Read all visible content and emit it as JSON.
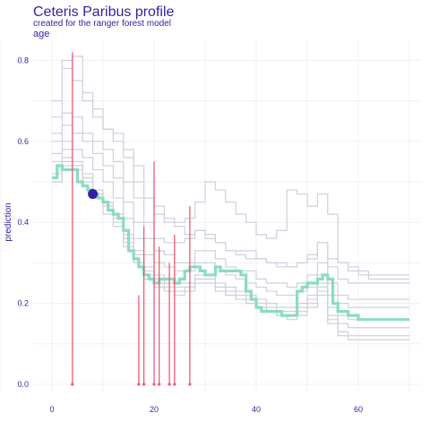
{
  "header": {
    "title": "Ceteris Paribus profile",
    "subtitle": "created for the ranger forest model",
    "facet": "age"
  },
  "colors": {
    "text": "#371ea3",
    "grid": "#f0f0f4",
    "profile": "#cfcfdf",
    "main_profile": "#8bdcbe",
    "rug": "#f05a71",
    "observation": "#371ea3"
  },
  "chart_data": {
    "type": "line",
    "title": "Ceteris Paribus profile",
    "subtitle": "created for the ranger forest model",
    "xlabel": "age",
    "ylabel": "prediction",
    "xlim": [
      -3,
      73
    ],
    "ylim": [
      -0.01,
      0.84
    ],
    "x_ticks": [
      0,
      20,
      40,
      60
    ],
    "y_ticks": [
      0.0,
      0.2,
      0.4,
      0.6,
      0.8
    ],
    "y_tick_labels": [
      "0.0",
      "0.2",
      "0.4",
      "0.6",
      "0.8"
    ],
    "grid": true,
    "legend": "none",
    "series": [
      {
        "x": [
          0,
          2,
          4,
          6,
          8,
          10,
          12,
          14,
          16,
          18,
          20,
          22,
          24,
          26,
          28,
          30,
          32,
          34,
          36,
          38,
          40,
          42,
          44,
          46,
          48,
          50,
          52,
          54,
          56,
          58,
          60,
          62,
          64,
          66,
          68,
          70
        ],
        "values": [
          0.7,
          0.8,
          0.81,
          0.72,
          0.68,
          0.63,
          0.62,
          0.58,
          0.54,
          0.46,
          0.44,
          0.41,
          0.39,
          0.37,
          0.38,
          0.36,
          0.35,
          0.33,
          0.32,
          0.31,
          0.31,
          0.3,
          0.3,
          0.29,
          0.3,
          0.31,
          0.35,
          0.31,
          0.3,
          0.29,
          0.28,
          0.27,
          0.27,
          0.27,
          0.27,
          0.27
        ]
      },
      {
        "x": [
          0,
          2,
          4,
          6,
          8,
          10,
          12,
          14,
          16,
          18,
          20,
          22,
          24,
          26,
          28,
          30,
          32,
          34,
          36,
          38,
          40,
          42,
          44,
          46,
          48,
          50,
          52,
          54,
          56,
          58,
          60,
          62,
          64,
          66,
          68,
          70
        ],
        "values": [
          0.66,
          0.78,
          0.75,
          0.7,
          0.66,
          0.63,
          0.6,
          0.56,
          0.5,
          0.46,
          0.42,
          0.4,
          0.4,
          0.41,
          0.45,
          0.5,
          0.48,
          0.45,
          0.42,
          0.4,
          0.37,
          0.36,
          0.38,
          0.48,
          0.47,
          0.44,
          0.47,
          0.42,
          0.3,
          0.28,
          0.27,
          0.26,
          0.26,
          0.26,
          0.26,
          0.26
        ]
      },
      {
        "x": [
          0,
          2,
          4,
          6,
          8,
          10,
          12,
          14,
          16,
          18,
          20,
          22,
          24,
          26,
          28,
          30,
          32,
          34,
          36,
          38,
          40,
          42,
          44,
          46,
          48,
          50,
          52,
          54,
          56,
          58,
          60,
          62,
          64,
          66,
          68,
          70
        ],
        "values": [
          0.62,
          0.67,
          0.66,
          0.62,
          0.6,
          0.58,
          0.55,
          0.5,
          0.46,
          0.4,
          0.36,
          0.35,
          0.35,
          0.36,
          0.38,
          0.37,
          0.35,
          0.33,
          0.33,
          0.33,
          0.31,
          0.3,
          0.29,
          0.29,
          0.3,
          0.32,
          0.35,
          0.29,
          0.26,
          0.25,
          0.25,
          0.25,
          0.25,
          0.25,
          0.25,
          0.25
        ]
      },
      {
        "x": [
          0,
          2,
          4,
          6,
          8,
          10,
          12,
          14,
          16,
          18,
          20,
          22,
          24,
          26,
          28,
          30,
          32,
          34,
          36,
          38,
          40,
          42,
          44,
          46,
          48,
          50,
          52,
          54,
          56,
          58,
          60,
          62,
          64,
          66,
          68,
          70
        ],
        "values": [
          0.6,
          0.64,
          0.62,
          0.6,
          0.57,
          0.54,
          0.51,
          0.45,
          0.4,
          0.36,
          0.33,
          0.32,
          0.3,
          0.3,
          0.33,
          0.33,
          0.31,
          0.29,
          0.28,
          0.28,
          0.26,
          0.25,
          0.25,
          0.24,
          0.25,
          0.27,
          0.3,
          0.25,
          0.22,
          0.21,
          0.21,
          0.21,
          0.21,
          0.21,
          0.21,
          0.21
        ]
      },
      {
        "x": [
          0,
          2,
          4,
          6,
          8,
          10,
          12,
          14,
          16,
          18,
          20,
          22,
          24,
          26,
          28,
          30,
          32,
          34,
          36,
          38,
          40,
          42,
          44,
          46,
          48,
          50,
          52,
          54,
          56,
          58,
          60,
          62,
          64,
          66,
          68,
          70
        ],
        "values": [
          0.57,
          0.6,
          0.58,
          0.56,
          0.53,
          0.5,
          0.46,
          0.41,
          0.36,
          0.32,
          0.3,
          0.29,
          0.28,
          0.28,
          0.3,
          0.3,
          0.28,
          0.27,
          0.26,
          0.25,
          0.24,
          0.23,
          0.22,
          0.22,
          0.23,
          0.24,
          0.27,
          0.22,
          0.2,
          0.19,
          0.19,
          0.19,
          0.19,
          0.19,
          0.19,
          0.19
        ]
      },
      {
        "x": [
          0,
          2,
          4,
          6,
          8,
          10,
          12,
          14,
          16,
          18,
          20,
          22,
          24,
          26,
          28,
          30,
          32,
          34,
          36,
          38,
          40,
          42,
          44,
          46,
          48,
          50,
          52,
          54,
          56,
          58,
          60,
          62,
          64,
          66,
          68,
          70
        ],
        "values": [
          0.55,
          0.58,
          0.55,
          0.52,
          0.48,
          0.45,
          0.41,
          0.36,
          0.32,
          0.29,
          0.27,
          0.26,
          0.25,
          0.25,
          0.27,
          0.27,
          0.25,
          0.24,
          0.23,
          0.22,
          0.21,
          0.2,
          0.19,
          0.19,
          0.2,
          0.22,
          0.25,
          0.19,
          0.17,
          0.16,
          0.16,
          0.16,
          0.16,
          0.16,
          0.16,
          0.16
        ]
      },
      {
        "x": [
          0,
          2,
          4,
          6,
          8,
          10,
          12,
          14,
          16,
          18,
          20,
          22,
          24,
          26,
          28,
          30,
          32,
          34,
          36,
          38,
          40,
          42,
          44,
          46,
          48,
          50,
          52,
          54,
          56,
          58,
          60,
          62,
          64,
          66,
          68,
          70
        ],
        "values": [
          0.52,
          0.56,
          0.54,
          0.5,
          0.46,
          0.42,
          0.39,
          0.34,
          0.3,
          0.27,
          0.25,
          0.24,
          0.23,
          0.24,
          0.26,
          0.26,
          0.24,
          0.23,
          0.22,
          0.21,
          0.2,
          0.19,
          0.18,
          0.18,
          0.19,
          0.21,
          0.24,
          0.17,
          0.15,
          0.14,
          0.14,
          0.14,
          0.14,
          0.14,
          0.14,
          0.14
        ]
      },
      {
        "x": [
          0,
          2,
          4,
          6,
          8,
          10,
          12,
          14,
          16,
          18,
          20,
          22,
          24,
          26,
          28,
          30,
          32,
          34,
          36,
          38,
          40,
          42,
          44,
          46,
          48,
          50,
          52,
          54,
          56,
          58,
          60,
          62,
          64,
          66,
          68,
          70
        ],
        "values": [
          0.5,
          0.55,
          0.54,
          0.51,
          0.47,
          0.44,
          0.4,
          0.35,
          0.3,
          0.26,
          0.24,
          0.23,
          0.22,
          0.23,
          0.25,
          0.25,
          0.23,
          0.22,
          0.21,
          0.2,
          0.19,
          0.18,
          0.17,
          0.17,
          0.18,
          0.2,
          0.23,
          0.16,
          0.13,
          0.12,
          0.12,
          0.12,
          0.12,
          0.12,
          0.12,
          0.12
        ]
      },
      {
        "x": [
          0,
          2,
          4,
          6,
          8,
          10,
          12,
          14,
          16,
          18,
          20,
          22,
          24,
          26,
          28,
          30,
          32,
          34,
          36,
          38,
          40,
          42,
          44,
          46,
          48,
          50,
          52,
          54,
          56,
          58,
          60,
          62,
          64,
          66,
          68,
          70
        ],
        "values": [
          0.5,
          0.54,
          0.53,
          0.51,
          0.48,
          0.45,
          0.42,
          0.37,
          0.33,
          0.28,
          0.26,
          0.25,
          0.24,
          0.24,
          0.26,
          0.26,
          0.24,
          0.22,
          0.21,
          0.2,
          0.19,
          0.18,
          0.17,
          0.16,
          0.17,
          0.19,
          0.22,
          0.15,
          0.12,
          0.11,
          0.11,
          0.11,
          0.11,
          0.11,
          0.11,
          0.11
        ]
      },
      {
        "name": "main",
        "highlight": true,
        "x": [
          0,
          1,
          2,
          3,
          4,
          5,
          6,
          7,
          8,
          9,
          10,
          11,
          12,
          13,
          14,
          15,
          16,
          17,
          18,
          19,
          20,
          21,
          22,
          23,
          24,
          25,
          26,
          27,
          28,
          29,
          30,
          31,
          32,
          33,
          34,
          35,
          36,
          37,
          38,
          39,
          40,
          41,
          42,
          43,
          44,
          45,
          46,
          47,
          48,
          49,
          50,
          51,
          52,
          53,
          54,
          55,
          56,
          57,
          58,
          59,
          60,
          61,
          62,
          63,
          64,
          65,
          66,
          67,
          68,
          69,
          70
        ],
        "values": [
          0.51,
          0.54,
          0.53,
          0.53,
          0.53,
          0.5,
          0.49,
          0.48,
          0.47,
          0.46,
          0.45,
          0.43,
          0.42,
          0.41,
          0.38,
          0.33,
          0.31,
          0.29,
          0.27,
          0.26,
          0.25,
          0.26,
          0.26,
          0.26,
          0.25,
          0.26,
          0.28,
          0.29,
          0.29,
          0.28,
          0.27,
          0.27,
          0.29,
          0.28,
          0.28,
          0.28,
          0.28,
          0.27,
          0.23,
          0.21,
          0.19,
          0.18,
          0.18,
          0.18,
          0.18,
          0.17,
          0.17,
          0.17,
          0.23,
          0.24,
          0.25,
          0.25,
          0.26,
          0.27,
          0.26,
          0.2,
          0.18,
          0.18,
          0.17,
          0.17,
          0.16,
          0.16,
          0.16,
          0.16,
          0.16,
          0.16,
          0.16,
          0.16,
          0.16,
          0.16,
          0.16
        ]
      }
    ],
    "observation": {
      "x": 8,
      "y": 0.47
    },
    "rug": [
      {
        "x": 4,
        "y": 0.82
      },
      {
        "x": 17,
        "y": 0.22
      },
      {
        "x": 18,
        "y": 0.39
      },
      {
        "x": 20,
        "y": 0.55
      },
      {
        "x": 21,
        "y": 0.34
      },
      {
        "x": 23,
        "y": 0.3
      },
      {
        "x": 24,
        "y": 0.37
      },
      {
        "x": 27,
        "y": 0.44
      }
    ]
  }
}
